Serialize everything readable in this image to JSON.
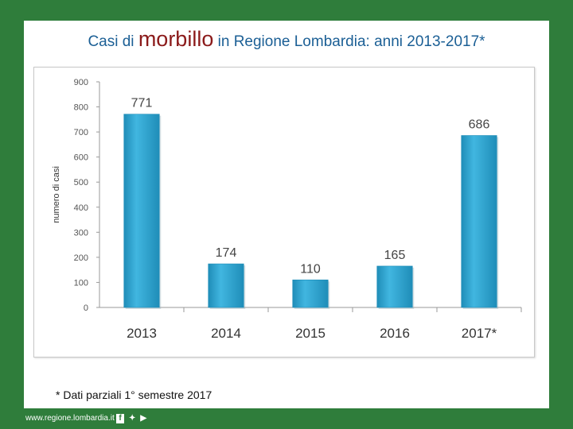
{
  "title": {
    "prefix": "Casi di ",
    "emphasis": "morbillo",
    "suffix": " in Regione Lombardia: anni 2013-2017*"
  },
  "footnote": "*  Dati parziali 1° semestre 2017",
  "footer": {
    "site": "www.regione.lombardia.it",
    "icons": [
      "facebook-icon",
      "twitter-icon",
      "youtube-icon"
    ]
  },
  "colors": {
    "bar": "#41b6e0",
    "bar_dark": "#1f8db8",
    "frame_bg": "#2f7d3b",
    "title": "#1b5f95",
    "emphasis": "#8b1a1a"
  },
  "chart_data": {
    "type": "bar",
    "title": "",
    "xlabel": "",
    "ylabel": "numero di casi",
    "categories": [
      "2013",
      "2014",
      "2015",
      "2016",
      "2017*"
    ],
    "values": [
      771,
      174,
      110,
      165,
      686
    ],
    "data_labels": [
      "771",
      "174",
      "110",
      "165",
      "686"
    ],
    "ylim": [
      0,
      900
    ],
    "yticks": [
      0,
      100,
      200,
      300,
      400,
      500,
      600,
      700,
      800,
      900
    ],
    "ytick_labels": [
      "0",
      "100",
      "200",
      "300",
      "400",
      "500",
      "600",
      "700",
      "800",
      "900"
    ],
    "grid": false,
    "legend": "none"
  }
}
